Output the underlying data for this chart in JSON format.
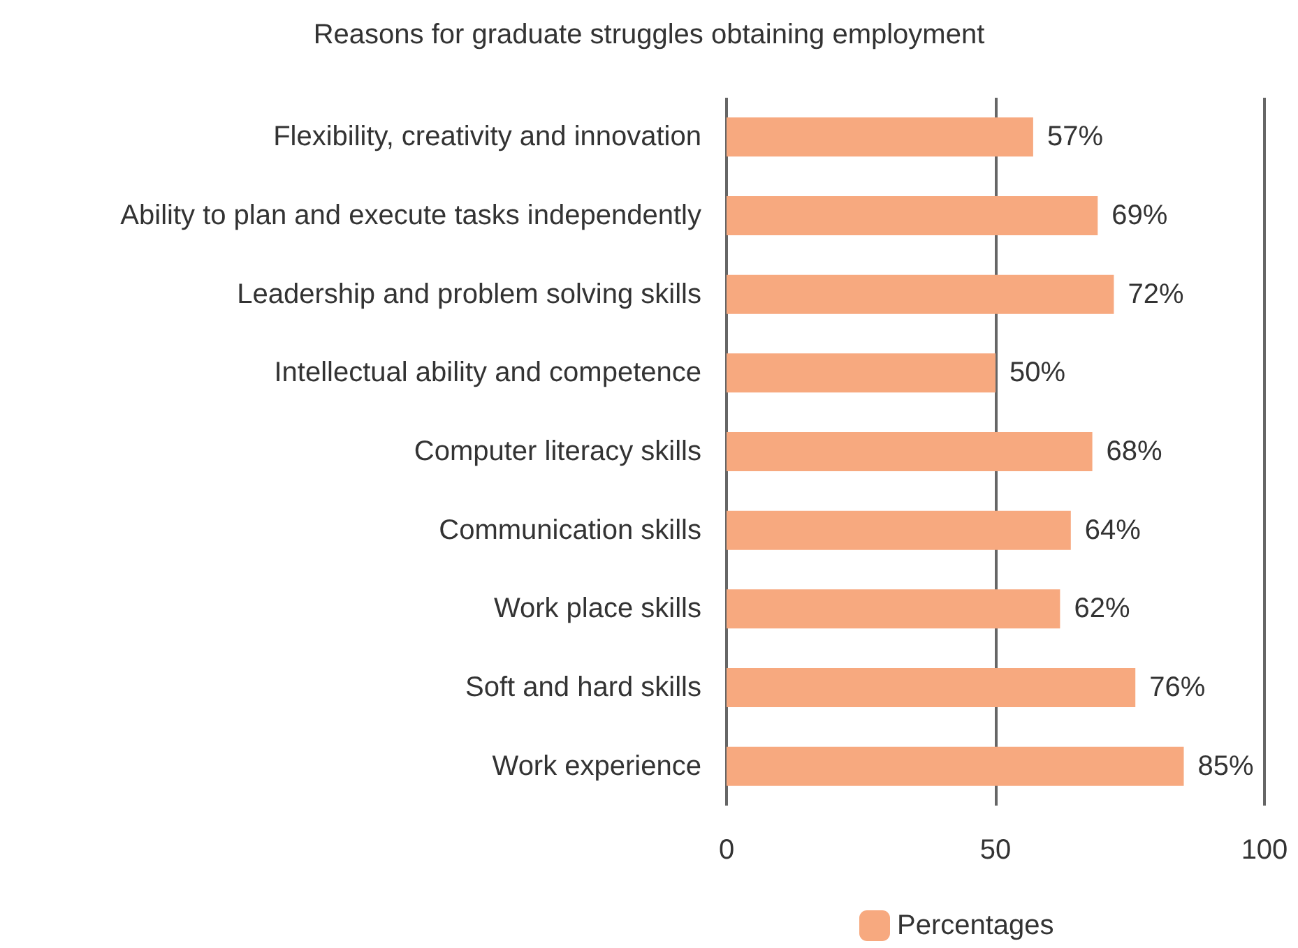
{
  "chart_data": {
    "type": "bar",
    "orientation": "horizontal",
    "title": "Reasons for graduate struggles obtaining employment",
    "categories": [
      "Flexibility, creativity and innovation",
      "Ability to plan and execute tasks independently",
      "Leadership and problem solving skills",
      "Intellectual ability and competence",
      "Computer literacy skills",
      "Communication skills",
      "Work place skills",
      "Soft and hard skills",
      "Work experience"
    ],
    "series": [
      {
        "name": "Percentages",
        "color": "#f7a97f",
        "values": [
          57,
          69,
          72,
          50,
          68,
          64,
          62,
          76,
          85
        ],
        "value_labels": [
          "57%",
          "69%",
          "72%",
          "50%",
          "68%",
          "64%",
          "62%",
          "76%",
          "85%"
        ]
      }
    ],
    "xlim": [
      0,
      100
    ],
    "xticks": [
      0,
      50,
      100
    ],
    "grid": "x",
    "legend": "bottom"
  }
}
